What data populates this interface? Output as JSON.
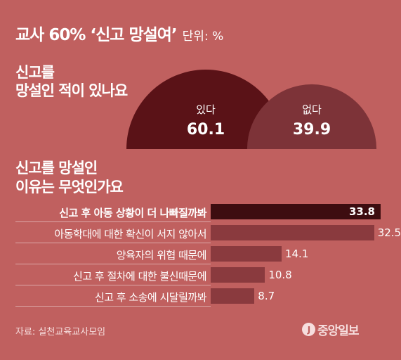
{
  "header": {
    "title": "교사 60% ‘신고 망설여’",
    "unit": "단위: %"
  },
  "question1": {
    "line1": "신고를",
    "line2": "망설인 적이 있나요"
  },
  "question2": {
    "line1": "신고를 망설인",
    "line2": "이유는 무엇인가요"
  },
  "footer": {
    "source": "자료: 실천교육교사모임",
    "logo_mark": "J",
    "logo_text": "중앙일보"
  },
  "colors": {
    "background": "#c0605f",
    "yes_semicircle": "#5a1217",
    "no_semicircle": "#7d3338",
    "bar_highlight": "#3d0d10",
    "bar": "#8a3a3e",
    "text": "#ffffff"
  },
  "chart_data": [
    {
      "type": "pie",
      "categories": [
        "있다",
        "없다"
      ],
      "values": [
        60.1,
        39.9
      ]
    },
    {
      "type": "bar",
      "orientation": "horizontal",
      "categories": [
        "신고 후 아동 상황이 더 나빠질까봐",
        "아동학대에 대한 확신이 서지 않아서",
        "양육자의 위협 때문에",
        "신고 후 절차에 대한 불신때문에",
        "신고 후 소송에 시달릴까봐"
      ],
      "values": [
        33.8,
        32.5,
        14.1,
        10.8,
        8.7
      ],
      "highlight_index": 0
    }
  ]
}
